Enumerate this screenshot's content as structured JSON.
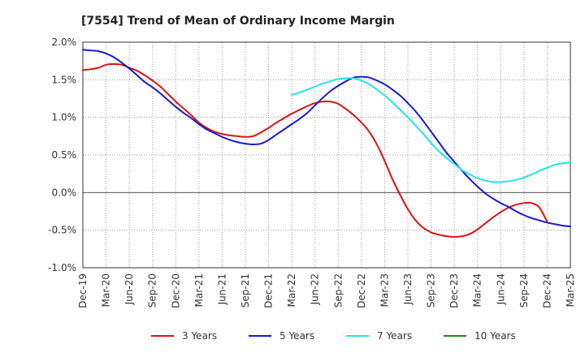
{
  "chart_data": {
    "type": "line",
    "title": "[7554]  Trend of Mean of Ordinary Income Margin",
    "xlabel": "",
    "ylabel": "",
    "x_ticks": [
      "Dec-19",
      "Mar-20",
      "Jun-20",
      "Sep-20",
      "Dec-20",
      "Mar-21",
      "Jun-21",
      "Sep-21",
      "Dec-21",
      "Mar-22",
      "Jun-22",
      "Sep-22",
      "Dec-22",
      "Mar-23",
      "Jun-23",
      "Sep-23",
      "Dec-23",
      "Mar-24",
      "Jun-24",
      "Sep-24",
      "Dec-24",
      "Mar-25"
    ],
    "y_ticks": [
      "2.0%",
      "1.5%",
      "1.0%",
      "0.5%",
      "0.0%",
      "-0.5%",
      "-1.0%"
    ],
    "y_tick_values": [
      2.0,
      1.5,
      1.0,
      0.5,
      0.0,
      -0.5,
      -1.0
    ],
    "ylim": [
      -1.0,
      2.0
    ],
    "y_unit": "%",
    "grid": true,
    "legend_position": "bottom",
    "series": [
      {
        "name": "3 Years",
        "color": "#dd1111",
        "points": [
          [
            "Dec-19",
            1.63
          ],
          [
            "Jan-20",
            1.64
          ],
          [
            "Feb-20",
            1.66
          ],
          [
            "Mar-20",
            1.7
          ],
          [
            "Apr-20",
            1.71
          ],
          [
            "May-20",
            1.7
          ],
          [
            "Jun-20",
            1.66
          ],
          [
            "Jul-20",
            1.62
          ],
          [
            "Aug-20",
            1.56
          ],
          [
            "Sep-20",
            1.49
          ],
          [
            "Oct-20",
            1.41
          ],
          [
            "Nov-20",
            1.31
          ],
          [
            "Dec-20",
            1.21
          ],
          [
            "Jan-21",
            1.12
          ],
          [
            "Feb-21",
            1.03
          ],
          [
            "Mar-21",
            0.93
          ],
          [
            "Apr-21",
            0.86
          ],
          [
            "May-21",
            0.81
          ],
          [
            "Jun-21",
            0.78
          ],
          [
            "Jul-21",
            0.76
          ],
          [
            "Aug-21",
            0.75
          ],
          [
            "Sep-21",
            0.74
          ],
          [
            "Oct-21",
            0.75
          ],
          [
            "Nov-21",
            0.8
          ],
          [
            "Dec-21",
            0.86
          ],
          [
            "Jan-22",
            0.93
          ],
          [
            "Feb-22",
            0.99
          ],
          [
            "Mar-22",
            1.05
          ],
          [
            "Apr-22",
            1.1
          ],
          [
            "May-22",
            1.15
          ],
          [
            "Jun-22",
            1.19
          ],
          [
            "Jul-22",
            1.21
          ],
          [
            "Aug-22",
            1.21
          ],
          [
            "Sep-22",
            1.18
          ],
          [
            "Oct-22",
            1.11
          ],
          [
            "Nov-22",
            1.03
          ],
          [
            "Dec-22",
            0.93
          ],
          [
            "Jan-23",
            0.81
          ],
          [
            "Feb-23",
            0.64
          ],
          [
            "Mar-23",
            0.42
          ],
          [
            "Apr-23",
            0.18
          ],
          [
            "May-23",
            -0.03
          ],
          [
            "Jun-23",
            -0.22
          ],
          [
            "Jul-23",
            -0.37
          ],
          [
            "Aug-23",
            -0.47
          ],
          [
            "Sep-23",
            -0.53
          ],
          [
            "Oct-23",
            -0.56
          ],
          [
            "Nov-23",
            -0.58
          ],
          [
            "Dec-23",
            -0.59
          ],
          [
            "Jan-24",
            -0.58
          ],
          [
            "Feb-24",
            -0.55
          ],
          [
            "Mar-24",
            -0.49
          ],
          [
            "Apr-24",
            -0.41
          ],
          [
            "May-24",
            -0.33
          ],
          [
            "Jun-24",
            -0.26
          ],
          [
            "Jul-24",
            -0.2
          ],
          [
            "Aug-24",
            -0.16
          ],
          [
            "Sep-24",
            -0.14
          ],
          [
            "Oct-24",
            -0.14
          ],
          [
            "Nov-24",
            -0.2
          ],
          [
            "Dec-24",
            -0.39
          ]
        ]
      },
      {
        "name": "5 Years",
        "color": "#1a1acc",
        "points": [
          [
            "Dec-19",
            1.9
          ],
          [
            "Jan-20",
            1.89
          ],
          [
            "Feb-20",
            1.88
          ],
          [
            "Mar-20",
            1.85
          ],
          [
            "Apr-20",
            1.8
          ],
          [
            "May-20",
            1.73
          ],
          [
            "Jun-20",
            1.65
          ],
          [
            "Jul-20",
            1.56
          ],
          [
            "Aug-20",
            1.47
          ],
          [
            "Sep-20",
            1.4
          ],
          [
            "Oct-20",
            1.32
          ],
          [
            "Nov-20",
            1.23
          ],
          [
            "Dec-20",
            1.14
          ],
          [
            "Jan-21",
            1.06
          ],
          [
            "Feb-21",
            0.99
          ],
          [
            "Mar-21",
            0.91
          ],
          [
            "Apr-21",
            0.84
          ],
          [
            "May-21",
            0.79
          ],
          [
            "Jun-21",
            0.74
          ],
          [
            "Jul-21",
            0.7
          ],
          [
            "Aug-21",
            0.67
          ],
          [
            "Sep-21",
            0.65
          ],
          [
            "Oct-21",
            0.64
          ],
          [
            "Nov-21",
            0.65
          ],
          [
            "Dec-21",
            0.7
          ],
          [
            "Jan-22",
            0.77
          ],
          [
            "Feb-22",
            0.84
          ],
          [
            "Mar-22",
            0.91
          ],
          [
            "Apr-22",
            0.98
          ],
          [
            "May-22",
            1.06
          ],
          [
            "Jun-22",
            1.16
          ],
          [
            "Jul-22",
            1.26
          ],
          [
            "Aug-22",
            1.35
          ],
          [
            "Sep-22",
            1.42
          ],
          [
            "Oct-22",
            1.48
          ],
          [
            "Nov-22",
            1.53
          ],
          [
            "Dec-22",
            1.54
          ],
          [
            "Jan-23",
            1.53
          ],
          [
            "Feb-23",
            1.49
          ],
          [
            "Mar-23",
            1.44
          ],
          [
            "Apr-23",
            1.37
          ],
          [
            "May-23",
            1.29
          ],
          [
            "Jun-23",
            1.19
          ],
          [
            "Jul-23",
            1.08
          ],
          [
            "Aug-23",
            0.95
          ],
          [
            "Sep-23",
            0.81
          ],
          [
            "Oct-23",
            0.67
          ],
          [
            "Nov-23",
            0.53
          ],
          [
            "Dec-23",
            0.41
          ],
          [
            "Jan-24",
            0.29
          ],
          [
            "Feb-24",
            0.18
          ],
          [
            "Mar-24",
            0.08
          ],
          [
            "Apr-24",
            -0.01
          ],
          [
            "May-24",
            -0.08
          ],
          [
            "Jun-24",
            -0.14
          ],
          [
            "Jul-24",
            -0.19
          ],
          [
            "Aug-24",
            -0.25
          ],
          [
            "Sep-24",
            -0.3
          ],
          [
            "Oct-24",
            -0.34
          ],
          [
            "Nov-24",
            -0.37
          ],
          [
            "Dec-24",
            -0.4
          ],
          [
            "Jan-25",
            -0.42
          ],
          [
            "Feb-25",
            -0.44
          ],
          [
            "Mar-25",
            -0.45
          ]
        ]
      },
      {
        "name": "7 Years",
        "color": "#22e5e5",
        "points": [
          [
            "Mar-22",
            1.3
          ],
          [
            "Apr-22",
            1.33
          ],
          [
            "May-22",
            1.37
          ],
          [
            "Jun-22",
            1.41
          ],
          [
            "Jul-22",
            1.45
          ],
          [
            "Aug-22",
            1.48
          ],
          [
            "Sep-22",
            1.51
          ],
          [
            "Oct-22",
            1.52
          ],
          [
            "Nov-22",
            1.52
          ],
          [
            "Dec-22",
            1.49
          ],
          [
            "Jan-23",
            1.44
          ],
          [
            "Feb-23",
            1.37
          ],
          [
            "Mar-23",
            1.29
          ],
          [
            "Apr-23",
            1.2
          ],
          [
            "May-23",
            1.1
          ],
          [
            "Jun-23",
            1.0
          ],
          [
            "Jul-23",
            0.89
          ],
          [
            "Aug-23",
            0.78
          ],
          [
            "Sep-23",
            0.66
          ],
          [
            "Oct-23",
            0.55
          ],
          [
            "Nov-23",
            0.46
          ],
          [
            "Dec-23",
            0.38
          ],
          [
            "Jan-24",
            0.3
          ],
          [
            "Feb-24",
            0.24
          ],
          [
            "Mar-24",
            0.19
          ],
          [
            "Apr-24",
            0.16
          ],
          [
            "May-24",
            0.14
          ],
          [
            "Jun-24",
            0.14
          ],
          [
            "Jul-24",
            0.15
          ],
          [
            "Aug-24",
            0.17
          ],
          [
            "Sep-24",
            0.2
          ],
          [
            "Oct-24",
            0.24
          ],
          [
            "Nov-24",
            0.29
          ],
          [
            "Dec-24",
            0.33
          ],
          [
            "Jan-25",
            0.37
          ],
          [
            "Feb-25",
            0.39
          ],
          [
            "Mar-25",
            0.4
          ]
        ]
      },
      {
        "name": "10 Years",
        "color": "#1a8c1a",
        "points": []
      }
    ]
  }
}
